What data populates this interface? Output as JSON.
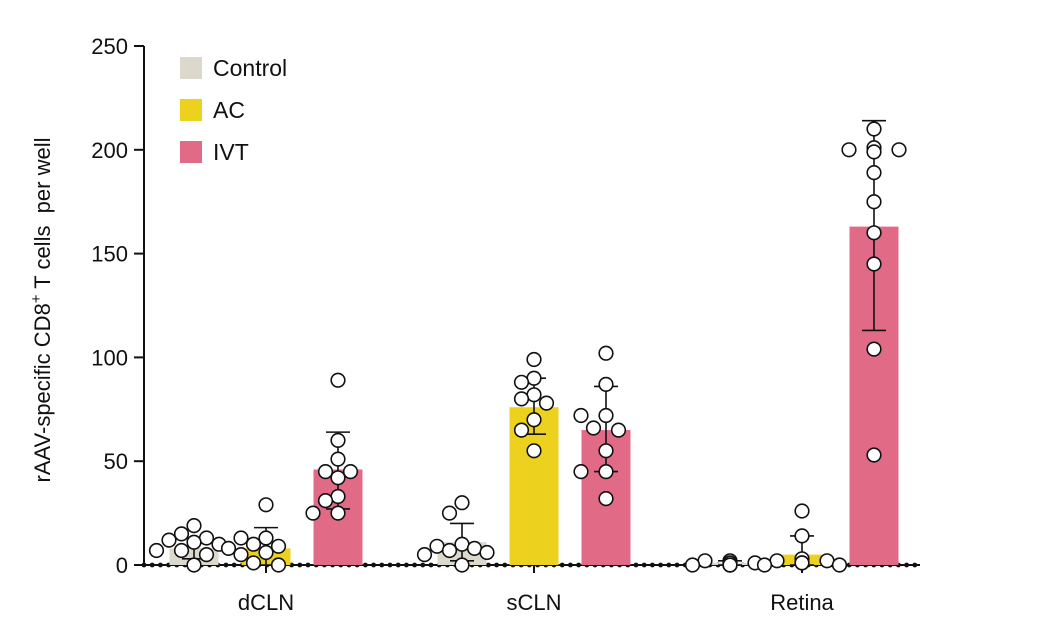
{
  "chart_data": {
    "type": "bar",
    "title": "",
    "xlabel": "",
    "ylabel_parts": {
      "prefix": "rAAV-specific CD8",
      "superscript": "+",
      "suffix": " T cells  per well"
    },
    "ylim": [
      0,
      250
    ],
    "yticks": [
      0,
      50,
      100,
      150,
      200,
      250
    ],
    "categories": [
      "dCLN",
      "sCLN",
      "Retina"
    ],
    "legend_position": "top-left",
    "grid": false,
    "series": [
      {
        "name": "Control",
        "color": "#ddd8cc",
        "values": [
          8,
          11,
          1
        ],
        "error": [
          [
            3,
            13
          ],
          [
            2,
            20
          ],
          [
            0,
            2
          ]
        ],
        "points": [
          [
            19,
            15,
            13,
            12,
            11,
            10,
            7,
            7,
            5,
            0
          ],
          [
            30,
            25,
            10,
            9,
            8,
            7,
            6,
            5,
            0
          ],
          [
            2,
            2,
            1,
            1,
            0,
            0,
            0,
            0,
            0
          ]
        ]
      },
      {
        "name": "AC",
        "color": "#ecd21e",
        "values": [
          8,
          76,
          5
        ],
        "error": [
          [
            0,
            18
          ],
          [
            63,
            90
          ],
          [
            0,
            14
          ]
        ],
        "points": [
          [
            29,
            13,
            13,
            10,
            9,
            8,
            6,
            5,
            1,
            0
          ],
          [
            99,
            90,
            88,
            82,
            80,
            78,
            70,
            65,
            55
          ],
          [
            26,
            14,
            3,
            2,
            2,
            1,
            1,
            0,
            0
          ]
        ]
      },
      {
        "name": "IVT",
        "color": "#e16a87",
        "values": [
          46,
          65,
          163
        ],
        "error": [
          [
            27,
            64
          ],
          [
            45,
            86
          ],
          [
            113,
            214
          ]
        ],
        "points": [
          [
            89,
            60,
            51,
            45,
            45,
            42,
            33,
            31,
            25,
            25
          ],
          [
            102,
            87,
            72,
            72,
            66,
            65,
            55,
            45,
            45,
            32
          ],
          [
            210,
            201,
            200,
            200,
            199,
            189,
            175,
            160,
            145,
            104,
            53
          ]
        ]
      }
    ]
  }
}
